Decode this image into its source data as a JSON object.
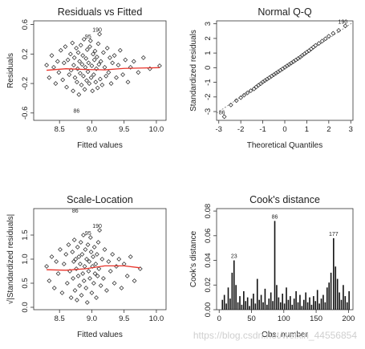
{
  "chart_data": [
    {
      "type": "scatter",
      "title": "Residuals vs Fitted",
      "xlabel": "Fitted values",
      "ylabel": "Residuals",
      "xlim": [
        8.1,
        10.15
      ],
      "ylim": [
        -0.7,
        0.65
      ],
      "xticks": [
        "8.5",
        "9.0",
        "9.5",
        "10.0"
      ],
      "yticks": [
        "-0.6",
        "-0.2",
        "0.2",
        "0.6"
      ],
      "smooth_color": "#e8332a",
      "point_labels": [
        {
          "label": "190",
          "x": 9.12,
          "y": 0.47
        },
        {
          "label": "95",
          "x": 8.98,
          "y": 0.38
        },
        {
          "label": "86",
          "x": 8.8,
          "y": -0.63
        }
      ],
      "smooth": {
        "x": [
          8.3,
          8.6,
          8.9,
          9.2,
          9.5,
          9.8,
          10.05
        ],
        "y": [
          -0.02,
          0.0,
          -0.01,
          -0.015,
          0.005,
          0.01,
          0.015
        ]
      },
      "points": {
        "x": [
          8.3,
          8.34,
          8.38,
          8.41,
          8.44,
          8.47,
          8.49,
          8.52,
          8.55,
          8.57,
          8.59,
          8.61,
          8.63,
          8.65,
          8.67,
          8.68,
          8.7,
          8.71,
          8.72,
          8.73,
          8.74,
          8.76,
          8.77,
          8.78,
          8.79,
          8.8,
          8.81,
          8.82,
          8.83,
          8.84,
          8.85,
          8.86,
          8.87,
          8.88,
          8.89,
          8.9,
          8.91,
          8.92,
          8.93,
          8.94,
          8.95,
          8.96,
          8.97,
          8.98,
          8.99,
          9.0,
          9.01,
          9.02,
          9.03,
          9.04,
          9.05,
          9.06,
          9.07,
          9.08,
          9.09,
          9.1,
          9.11,
          9.12,
          9.13,
          9.14,
          9.16,
          9.18,
          9.2,
          9.22,
          9.24,
          9.26,
          9.28,
          9.3,
          9.32,
          9.35,
          9.38,
          9.41,
          9.44,
          9.48,
          9.52,
          9.56,
          9.6,
          9.65,
          9.72,
          9.8,
          9.9,
          10.05
        ],
        "y": [
          0.05,
          -0.12,
          0.18,
          0.02,
          -0.2,
          0.1,
          -0.05,
          0.25,
          -0.15,
          0.08,
          0.3,
          -0.25,
          0.12,
          -0.08,
          0.2,
          -0.02,
          0.35,
          -0.3,
          0.05,
          0.15,
          -0.12,
          0.28,
          -0.18,
          0.0,
          0.22,
          -0.35,
          0.1,
          -0.06,
          0.32,
          -0.22,
          0.06,
          0.18,
          -0.1,
          0.4,
          -0.28,
          0.02,
          0.14,
          -0.16,
          0.26,
          -0.04,
          0.08,
          -0.2,
          0.3,
          0.38,
          -0.12,
          0.04,
          -0.3,
          0.2,
          -0.08,
          0.12,
          0.24,
          -0.18,
          0.0,
          0.16,
          -0.26,
          0.34,
          0.06,
          0.47,
          -0.14,
          0.1,
          -0.22,
          0.22,
          0.02,
          -0.1,
          0.28,
          -0.05,
          0.15,
          -0.2,
          0.08,
          0.18,
          -0.12,
          0.05,
          0.25,
          -0.08,
          0.12,
          -0.18,
          0.02,
          0.1,
          -0.05,
          0.15,
          0.0,
          0.04
        ]
      }
    },
    {
      "type": "scatter",
      "title": "Normal Q-Q",
      "xlabel": "Theoretical Quantiles",
      "ylabel": "Standardized residuals",
      "xlim": [
        -3.1,
        3.1
      ],
      "ylim": [
        -3.6,
        3.2
      ],
      "xticks": [
        "-3",
        "-2",
        "-1",
        "0",
        "1",
        "2",
        "3"
      ],
      "yticks": [
        "-3",
        "-2",
        "-1",
        "0",
        "1",
        "2",
        "3"
      ],
      "reference_line": {
        "x": [
          -3.1,
          3.1
        ],
        "y": [
          -3.1,
          3.1
        ]
      },
      "point_labels": [
        {
          "label": "190",
          "x": 2.75,
          "y": 2.85
        },
        {
          "label": "86",
          "x": -2.75,
          "y": -3.35
        }
      ],
      "points": {
        "x": [
          -2.75,
          -2.45,
          -2.2,
          -2.0,
          -1.85,
          -1.7,
          -1.55,
          -1.4,
          -1.3,
          -1.2,
          -1.1,
          -1.0,
          -0.9,
          -0.8,
          -0.7,
          -0.6,
          -0.5,
          -0.4,
          -0.3,
          -0.2,
          -0.1,
          0.0,
          0.1,
          0.2,
          0.3,
          0.4,
          0.5,
          0.6,
          0.7,
          0.8,
          0.9,
          1.0,
          1.1,
          1.2,
          1.3,
          1.4,
          1.55,
          1.7,
          1.85,
          2.0,
          2.2,
          2.45,
          2.75
        ],
        "y": [
          -3.35,
          -2.55,
          -2.25,
          -2.05,
          -1.88,
          -1.72,
          -1.58,
          -1.45,
          -1.32,
          -1.2,
          -1.1,
          -0.98,
          -0.88,
          -0.78,
          -0.68,
          -0.58,
          -0.48,
          -0.38,
          -0.28,
          -0.18,
          -0.08,
          0.02,
          0.12,
          0.22,
          0.32,
          0.42,
          0.52,
          0.62,
          0.72,
          0.84,
          0.95,
          1.06,
          1.16,
          1.28,
          1.4,
          1.52,
          1.66,
          1.82,
          1.98,
          2.15,
          2.35,
          2.55,
          2.85
        ]
      }
    },
    {
      "type": "scatter",
      "title": "Scale-Location",
      "xlabel": "Fitted values",
      "ylabel": "√|Standardized residuals|",
      "xlim": [
        8.1,
        10.15
      ],
      "ylim": [
        -0.05,
        2.05
      ],
      "xticks": [
        "8.5",
        "9.0",
        "9.5",
        "10.0"
      ],
      "yticks": [
        "0.0",
        "0.5",
        "1.0",
        "1.5"
      ],
      "smooth_color": "#e8332a",
      "point_labels": [
        {
          "label": "86",
          "x": 8.78,
          "y": 1.92
        },
        {
          "label": "190",
          "x": 9.12,
          "y": 1.6
        },
        {
          "label": "95",
          "x": 8.98,
          "y": 1.45
        }
      ],
      "smooth": {
        "x": [
          8.3,
          8.6,
          8.9,
          9.2,
          9.5,
          9.75
        ],
        "y": [
          0.78,
          0.77,
          0.8,
          0.86,
          0.86,
          0.82
        ]
      },
      "points": {
        "x": [
          8.3,
          8.34,
          8.38,
          8.42,
          8.45,
          8.48,
          8.51,
          8.54,
          8.57,
          8.6,
          8.62,
          8.64,
          8.66,
          8.68,
          8.7,
          8.71,
          8.72,
          8.73,
          8.74,
          8.75,
          8.76,
          8.77,
          8.78,
          8.79,
          8.8,
          8.81,
          8.82,
          8.83,
          8.84,
          8.85,
          8.86,
          8.87,
          8.88,
          8.89,
          8.9,
          8.91,
          8.92,
          8.93,
          8.94,
          8.95,
          8.96,
          8.97,
          8.98,
          8.99,
          9.0,
          9.01,
          9.02,
          9.03,
          9.04,
          9.05,
          9.06,
          9.07,
          9.08,
          9.09,
          9.1,
          9.11,
          9.12,
          9.14,
          9.16,
          9.18,
          9.2,
          9.23,
          9.26,
          9.29,
          9.32,
          9.35,
          9.38,
          9.42,
          9.46,
          9.5,
          9.55,
          9.6,
          9.66,
          9.75
        ],
        "y": [
          0.85,
          0.55,
          1.05,
          0.4,
          0.95,
          0.7,
          1.2,
          0.3,
          0.9,
          1.1,
          0.5,
          1.3,
          0.75,
          0.2,
          1.15,
          0.6,
          0.95,
          1.4,
          0.35,
          1.0,
          0.8,
          0.15,
          1.25,
          0.65,
          1.05,
          0.45,
          0.9,
          1.35,
          0.25,
          1.1,
          0.7,
          1.5,
          0.55,
          0.85,
          1.2,
          0.4,
          1.0,
          0.1,
          1.3,
          0.75,
          0.95,
          0.6,
          1.45,
          1.15,
          0.3,
          0.85,
          1.05,
          0.5,
          1.25,
          0.7,
          0.9,
          0.2,
          1.1,
          0.65,
          1.35,
          0.8,
          1.6,
          0.45,
          1.0,
          0.6,
          1.2,
          0.35,
          0.95,
          0.75,
          1.1,
          0.5,
          0.85,
          1.0,
          0.4,
          0.9,
          0.65,
          1.05,
          0.55,
          0.8
        ]
      }
    },
    {
      "type": "bar",
      "title": "Cook's distance",
      "xlabel": "Obs. number",
      "ylabel": "Cook's distance",
      "xlim": [
        -4,
        207
      ],
      "ylim": [
        0,
        0.082
      ],
      "xticks": [
        "0",
        "50",
        "100",
        "150",
        "200"
      ],
      "yticks": [
        "0.00",
        "0.02",
        "0.04",
        "0.06",
        "0.08"
      ],
      "point_labels": [
        {
          "label": "23",
          "x": 23,
          "y": 0.04
        },
        {
          "label": "86",
          "x": 86,
          "y": 0.072
        },
        {
          "label": "177",
          "x": 177,
          "y": 0.058
        }
      ],
      "x": [
        5,
        8,
        11,
        14,
        17,
        20,
        23,
        26,
        29,
        32,
        35,
        38,
        41,
        44,
        47,
        50,
        53,
        56,
        59,
        62,
        65,
        68,
        71,
        74,
        77,
        80,
        83,
        86,
        89,
        92,
        95,
        98,
        101,
        104,
        107,
        110,
        113,
        116,
        119,
        122,
        125,
        128,
        131,
        134,
        137,
        140,
        143,
        146,
        149,
        152,
        155,
        158,
        161,
        164,
        167,
        170,
        173,
        177,
        180,
        183,
        186,
        189,
        192,
        195,
        198,
        201
      ],
      "values": [
        0.008,
        0.012,
        0.005,
        0.018,
        0.009,
        0.03,
        0.04,
        0.02,
        0.006,
        0.011,
        0.004,
        0.015,
        0.007,
        0.01,
        0.003,
        0.009,
        0.013,
        0.005,
        0.025,
        0.008,
        0.012,
        0.006,
        0.017,
        0.004,
        0.009,
        0.014,
        0.007,
        0.072,
        0.02,
        0.01,
        0.006,
        0.013,
        0.005,
        0.018,
        0.008,
        0.011,
        0.004,
        0.009,
        0.015,
        0.006,
        0.012,
        0.003,
        0.008,
        0.014,
        0.006,
        0.01,
        0.004,
        0.011,
        0.007,
        0.016,
        0.005,
        0.009,
        0.012,
        0.006,
        0.018,
        0.022,
        0.03,
        0.058,
        0.035,
        0.025,
        0.014,
        0.008,
        0.02,
        0.011,
        0.006,
        0.015
      ]
    }
  ],
  "watermark": "https://blog.csdn.net/weixin_44556854"
}
